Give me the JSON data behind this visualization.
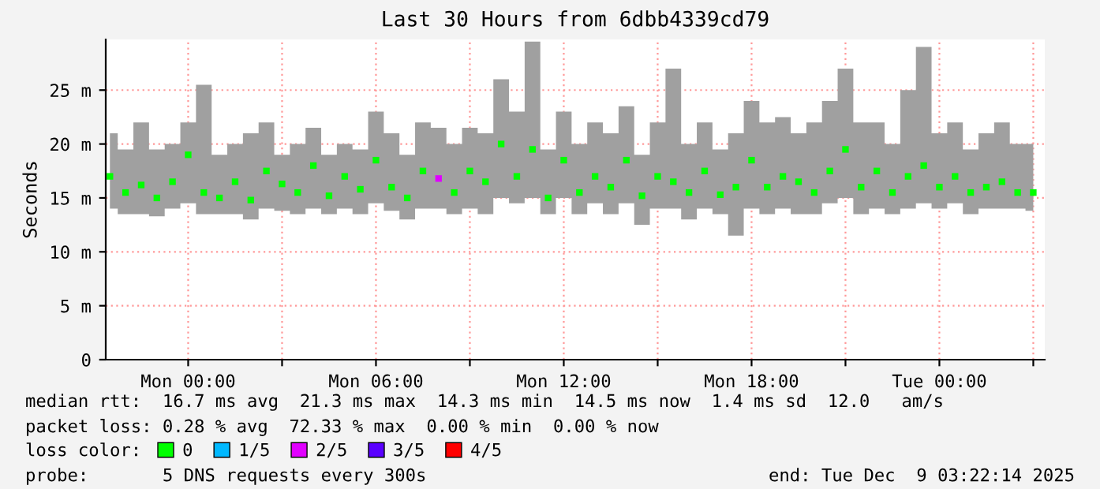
{
  "chart_data": {
    "type": "scatter",
    "title": "Last 30 Hours from 6dbb4339cd79",
    "ylabel": "Seconds",
    "x": [
      "2025-12-07T21:30",
      "2025-12-07T22:00",
      "2025-12-07T22:30",
      "2025-12-07T23:00",
      "2025-12-07T23:30",
      "2025-12-08T00:00",
      "2025-12-08T00:30",
      "2025-12-08T01:00",
      "2025-12-08T01:30",
      "2025-12-08T02:00",
      "2025-12-08T02:30",
      "2025-12-08T03:00",
      "2025-12-08T03:30",
      "2025-12-08T04:00",
      "2025-12-08T04:30",
      "2025-12-08T05:00",
      "2025-12-08T05:30",
      "2025-12-08T06:00",
      "2025-12-08T06:30",
      "2025-12-08T07:00",
      "2025-12-08T07:30",
      "2025-12-08T08:00",
      "2025-12-08T08:30",
      "2025-12-08T09:00",
      "2025-12-08T09:30",
      "2025-12-08T10:00",
      "2025-12-08T10:30",
      "2025-12-08T11:00",
      "2025-12-08T11:30",
      "2025-12-08T12:00",
      "2025-12-08T12:30",
      "2025-12-08T13:00",
      "2025-12-08T13:30",
      "2025-12-08T14:00",
      "2025-12-08T14:30",
      "2025-12-08T15:00",
      "2025-12-08T15:30",
      "2025-12-08T16:00",
      "2025-12-08T16:30",
      "2025-12-08T17:00",
      "2025-12-08T17:30",
      "2025-12-08T18:00",
      "2025-12-08T18:30",
      "2025-12-08T19:00",
      "2025-12-08T19:30",
      "2025-12-08T20:00",
      "2025-12-08T20:30",
      "2025-12-08T21:00",
      "2025-12-08T21:30",
      "2025-12-08T22:00",
      "2025-12-08T22:30",
      "2025-12-08T23:00",
      "2025-12-08T23:30",
      "2025-12-09T00:00",
      "2025-12-09T00:30",
      "2025-12-09T01:00",
      "2025-12-09T01:30",
      "2025-12-09T02:00",
      "2025-12-09T02:30",
      "2025-12-09T03:00"
    ],
    "series": [
      {
        "name": "0",
        "color": "#00ff00",
        "values": [
          17.0,
          15.5,
          16.2,
          15.0,
          16.5,
          19.0,
          15.5,
          15.0,
          16.5,
          14.8,
          17.5,
          16.3,
          15.5,
          18.0,
          15.2,
          17.0,
          15.8,
          18.5,
          16.0,
          15.0,
          17.5,
          null,
          15.5,
          17.5,
          16.5,
          20.0,
          17.0,
          19.5,
          15.0,
          18.5,
          15.5,
          17.0,
          16.0,
          18.5,
          15.2,
          17.0,
          16.5,
          15.5,
          17.5,
          15.3,
          16.0,
          18.5,
          16.0,
          17.0,
          16.5,
          15.5,
          17.5,
          19.5,
          16.0,
          17.5,
          15.5,
          17.0,
          18.0,
          16.0,
          17.0,
          15.5,
          16.0,
          16.5,
          15.5,
          15.5
        ],
        "lower": [
          14.0,
          13.5,
          13.5,
          13.3,
          14.0,
          14.5,
          13.5,
          13.5,
          13.5,
          13.0,
          14.0,
          13.8,
          13.5,
          14.0,
          13.5,
          14.0,
          13.5,
          14.5,
          13.8,
          13.0,
          14.0,
          14.0,
          13.5,
          14.0,
          13.5,
          15.0,
          14.5,
          15.0,
          13.5,
          15.0,
          13.5,
          14.5,
          13.5,
          14.5,
          12.5,
          14.0,
          14.0,
          13.0,
          14.0,
          13.5,
          11.5,
          14.0,
          13.5,
          14.0,
          13.5,
          13.5,
          14.5,
          15.0,
          13.5,
          14.0,
          13.5,
          14.0,
          14.5,
          14.0,
          14.5,
          13.5,
          14.0,
          14.0,
          14.0,
          13.8
        ],
        "upper": [
          21.0,
          19.5,
          22.0,
          19.5,
          20.0,
          22.0,
          25.5,
          19.0,
          20.0,
          21.0,
          22.0,
          19.0,
          20.0,
          21.5,
          19.0,
          20.0,
          19.5,
          23.0,
          21.0,
          19.0,
          22.0,
          21.5,
          20.0,
          21.5,
          21.0,
          26.0,
          23.0,
          29.5,
          19.5,
          23.0,
          20.0,
          22.0,
          21.0,
          23.5,
          19.0,
          22.0,
          27.0,
          20.0,
          22.0,
          19.5,
          21.0,
          24.0,
          22.0,
          22.5,
          21.0,
          22.0,
          24.0,
          27.0,
          22.0,
          22.0,
          20.0,
          25.0,
          29.0,
          21.0,
          22.0,
          19.5,
          21.0,
          22.0,
          20.0,
          20.0
        ]
      },
      {
        "name": "1/5",
        "color": "#00b8ff",
        "values": [
          null,
          null,
          null,
          null,
          null,
          null,
          null,
          null,
          null,
          null,
          null,
          null,
          null,
          null,
          null,
          null,
          null,
          null,
          null,
          null,
          null,
          null,
          null,
          null,
          null,
          null,
          null,
          null,
          null,
          null,
          null,
          null,
          null,
          null,
          null,
          null,
          null,
          null,
          null,
          null,
          null,
          null,
          null,
          null,
          null,
          null,
          null,
          null,
          null,
          null,
          null,
          null,
          null,
          null,
          null,
          null,
          null,
          null,
          null,
          null
        ]
      },
      {
        "name": "2/5",
        "color": "#e000ff",
        "values": [
          null,
          null,
          null,
          null,
          null,
          null,
          null,
          null,
          null,
          null,
          null,
          null,
          null,
          null,
          null,
          null,
          null,
          null,
          null,
          null,
          null,
          16.8,
          null,
          null,
          null,
          null,
          null,
          null,
          null,
          null,
          null,
          null,
          null,
          null,
          null,
          null,
          null,
          null,
          null,
          null,
          null,
          null,
          null,
          null,
          null,
          null,
          null,
          null,
          null,
          null,
          null,
          null,
          null,
          null,
          null,
          null,
          null,
          null,
          null,
          null
        ]
      },
      {
        "name": "3/5",
        "color": "#5a00ff",
        "values": [
          null,
          null,
          null,
          null,
          null,
          null,
          null,
          null,
          null,
          null,
          null,
          null,
          null,
          null,
          null,
          null,
          null,
          null,
          null,
          null,
          null,
          null,
          null,
          null,
          null,
          null,
          null,
          null,
          null,
          null,
          null,
          null,
          null,
          null,
          null,
          null,
          null,
          null,
          null,
          null,
          null,
          null,
          null,
          null,
          null,
          null,
          null,
          null,
          null,
          null,
          null,
          null,
          null,
          null,
          null,
          null,
          null,
          null,
          null,
          null
        ]
      },
      {
        "name": "4/5",
        "color": "#ff0000",
        "values": [
          null,
          null,
          null,
          null,
          null,
          null,
          null,
          null,
          null,
          null,
          null,
          null,
          null,
          null,
          null,
          null,
          null,
          null,
          null,
          null,
          null,
          null,
          null,
          null,
          null,
          null,
          null,
          null,
          null,
          null,
          null,
          null,
          null,
          null,
          null,
          null,
          null,
          null,
          null,
          null,
          null,
          null,
          null,
          null,
          null,
          null,
          null,
          null,
          null,
          null,
          null,
          null,
          null,
          null,
          null,
          null,
          null,
          null,
          null,
          null
        ]
      }
    ],
    "marker": "square",
    "legend": "bottom",
    "legend_title": "loss color:",
    "xlim": [
      "2025-12-07T21:22",
      "2025-12-09T03:22"
    ],
    "xticks": [
      {
        "value": "2025-12-08T00:00",
        "label": "Mon 00:00"
      },
      {
        "value": "2025-12-08T03:00",
        "label": null
      },
      {
        "value": "2025-12-08T06:00",
        "label": "Mon 06:00"
      },
      {
        "value": "2025-12-08T09:00",
        "label": null
      },
      {
        "value": "2025-12-08T12:00",
        "label": "Mon 12:00"
      },
      {
        "value": "2025-12-08T15:00",
        "label": null
      },
      {
        "value": "2025-12-08T18:00",
        "label": "Mon 18:00"
      },
      {
        "value": "2025-12-08T21:00",
        "label": null
      },
      {
        "value": "2025-12-09T00:00",
        "label": "Tue 00:00"
      },
      {
        "value": "2025-12-09T03:00",
        "label": null
      }
    ],
    "ylim": [
      0,
      29.7
    ],
    "yticks": [
      0,
      {
        "value": 5,
        "label": "5 m"
      },
      {
        "value": 10,
        "label": "10 m"
      },
      {
        "value": 15,
        "label": "15 m"
      },
      {
        "value": 20,
        "label": "20 m"
      },
      {
        "value": 25,
        "label": "25 m"
      }
    ],
    "grid": true,
    "annotations": [
      "median rtt:  16.7 ms avg  21.3 ms max  14.3 ms min  14.5 ms now  1.4 ms sd  12.0   am/s",
      "packet loss: 0.28 % avg  72.33 % max  0.00 % min  0.00 % now",
      "probe:       5 DNS requests every 300s",
      "end: Tue Dec  9 03:22:14 2025"
    ]
  }
}
